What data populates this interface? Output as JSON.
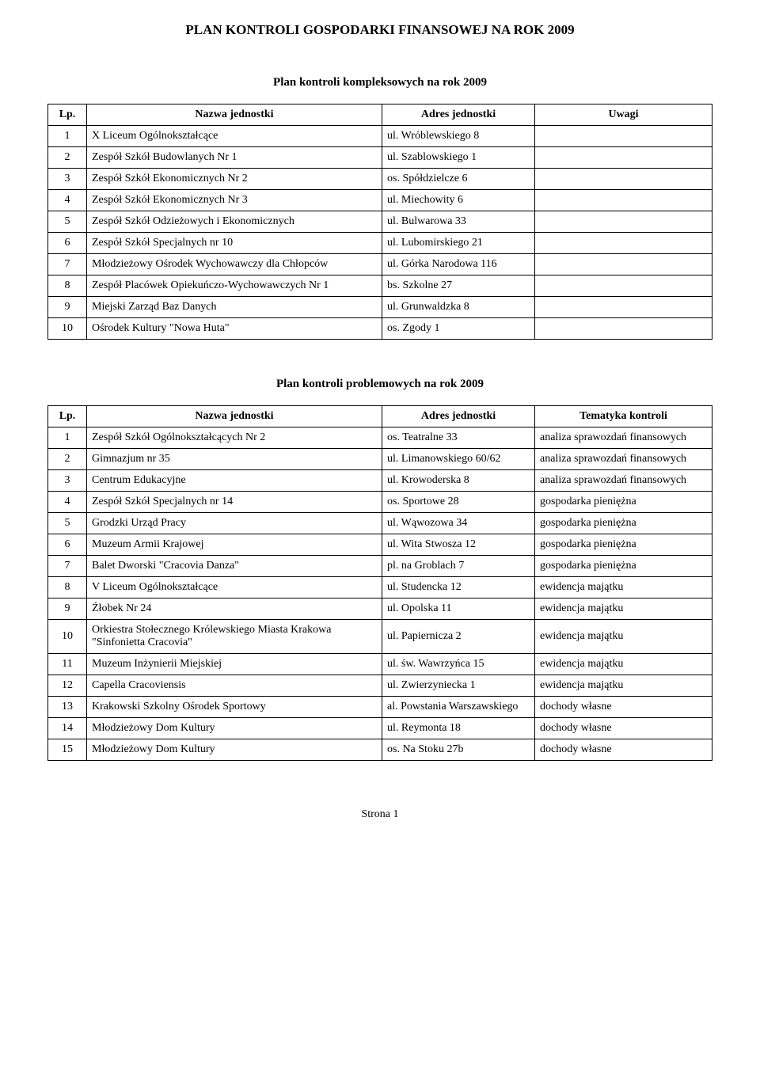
{
  "document": {
    "main_title": "PLAN KONTROLI GOSPODARKI FINANSOWEJ NA ROK 2009",
    "footer": "Strona 1"
  },
  "table1": {
    "title": "Plan kontroli kompleksowych na rok 2009",
    "headers": {
      "lp": "Lp.",
      "name": "Nazwa jednostki",
      "addr": "Adres jednostki",
      "notes": "Uwagi"
    },
    "rows": [
      {
        "lp": "1",
        "name": "X Liceum Ogólnokształcące",
        "addr": "ul. Wróblewskiego 8",
        "notes": ""
      },
      {
        "lp": "2",
        "name": "Zespół Szkół Budowlanych Nr 1",
        "addr": "ul. Szablowskiego 1",
        "notes": ""
      },
      {
        "lp": "3",
        "name": "Zespół Szkół Ekonomicznych Nr 2",
        "addr": "os. Spółdzielcze 6",
        "notes": ""
      },
      {
        "lp": "4",
        "name": "Zespół Szkół Ekonomicznych Nr 3",
        "addr": "ul. Miechowity 6",
        "notes": ""
      },
      {
        "lp": "5",
        "name": "Zespół Szkół Odzieżowych i Ekonomicznych",
        "addr": "ul. Bulwarowa 33",
        "notes": ""
      },
      {
        "lp": "6",
        "name": "Zespół Szkół Specjalnych nr 10",
        "addr": "ul. Lubomirskiego 21",
        "notes": ""
      },
      {
        "lp": "7",
        "name": "Młodzieżowy Ośrodek Wychowawczy dla Chłopców",
        "addr": "ul. Górka Narodowa 116",
        "notes": ""
      },
      {
        "lp": "8",
        "name": "Zespół Placówek Opiekuńczo-Wychowawczych Nr 1",
        "addr": "bs. Szkolne 27",
        "notes": ""
      },
      {
        "lp": "9",
        "name": "Miejski Zarząd Baz Danych",
        "addr": "ul. Grunwaldzka 8",
        "notes": ""
      },
      {
        "lp": "10",
        "name": "Ośrodek Kultury \"Nowa Huta\"",
        "addr": "os. Zgody 1",
        "notes": ""
      }
    ]
  },
  "table2": {
    "title": "Plan kontroli problemowych na rok 2009",
    "headers": {
      "lp": "Lp.",
      "name": "Nazwa jednostki",
      "addr": "Adres jednostki",
      "topic": "Tematyka kontroli"
    },
    "rows": [
      {
        "lp": "1",
        "name": "Zespół Szkół Ogólnokształcących Nr 2",
        "addr": "os. Teatralne 33",
        "topic": "analiza sprawozdań finansowych"
      },
      {
        "lp": "2",
        "name": "Gimnazjum nr 35",
        "addr": "ul. Limanowskiego 60/62",
        "topic": "analiza sprawozdań finansowych"
      },
      {
        "lp": "3",
        "name": "Centrum Edukacyjne",
        "addr": "ul. Krowoderska 8",
        "topic": "analiza sprawozdań finansowych"
      },
      {
        "lp": "4",
        "name": "Zespół Szkół Specjalnych nr 14",
        "addr": "os. Sportowe 28",
        "topic": "gospodarka pieniężna"
      },
      {
        "lp": "5",
        "name": "Grodzki Urząd Pracy",
        "addr": "ul. Wąwozowa 34",
        "topic": "gospodarka pieniężna"
      },
      {
        "lp": "6",
        "name": "Muzeum Armii Krajowej",
        "addr": "ul. Wita Stwosza 12",
        "topic": "gospodarka pieniężna"
      },
      {
        "lp": "7",
        "name": "Balet Dworski \"Cracovia Danza\"",
        "addr": "pl. na Groblach 7",
        "topic": "gospodarka pieniężna"
      },
      {
        "lp": "8",
        "name": "V Liceum Ogólnokształcące",
        "addr": "ul. Studencka 12",
        "topic": "ewidencja majątku"
      },
      {
        "lp": "9",
        "name": "Źłobek Nr 24",
        "addr": "ul. Opolska 11",
        "topic": "ewidencja majątku"
      },
      {
        "lp": "10",
        "name": "Orkiestra Stołecznego Królewskiego Miasta Krakowa \"Sinfonietta Cracovia\"",
        "addr": "ul. Papiernicza 2",
        "topic": "ewidencja majątku"
      },
      {
        "lp": "11",
        "name": "Muzeum Inżynierii Miejskiej",
        "addr": "ul. św. Wawrzyńca 15",
        "topic": "ewidencja majątku"
      },
      {
        "lp": "12",
        "name": "Capella Cracoviensis",
        "addr": "ul. Zwierzyniecka 1",
        "topic": "ewidencja majątku"
      },
      {
        "lp": "13",
        "name": "Krakowski Szkolny Ośrodek Sportowy",
        "addr": "al. Powstania Warszawskiego",
        "topic": "dochody własne"
      },
      {
        "lp": "14",
        "name": "Młodzieżowy Dom Kultury",
        "addr": "ul. Reymonta 18",
        "topic": "dochody własne"
      },
      {
        "lp": "15",
        "name": "Młodzieżowy Dom Kultury",
        "addr": "os. Na Stoku 27b",
        "topic": "dochody własne"
      }
    ]
  }
}
